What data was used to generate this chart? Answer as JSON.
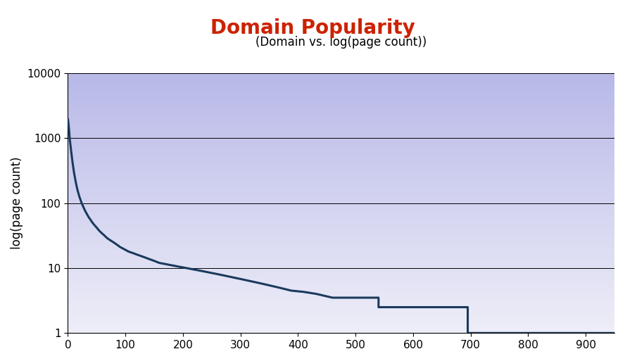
{
  "title": "Domain Popularity",
  "subtitle": "(Domain vs. log(page count))",
  "ylabel": "log(page count)",
  "xlim": [
    0,
    950
  ],
  "ylim_log": [
    1,
    10000
  ],
  "xticks": [
    0,
    100,
    200,
    300,
    400,
    500,
    600,
    700,
    800,
    900
  ],
  "yticks": [
    1,
    10,
    100,
    1000,
    10000
  ],
  "line_color": "#1a3a5c",
  "line_width": 2.2,
  "bg_color_top": "#b8b8e8",
  "bg_color_bottom": "#eeeef8",
  "title_color": "#cc2200",
  "title_fontsize": 20,
  "subtitle_fontsize": 12,
  "ylabel_fontsize": 12,
  "tick_fontsize": 11,
  "step_data": [
    [
      0,
      2000
    ],
    [
      1,
      1700
    ],
    [
      2,
      1350
    ],
    [
      3,
      1050
    ],
    [
      4,
      850
    ],
    [
      5,
      720
    ],
    [
      6,
      600
    ],
    [
      7,
      510
    ],
    [
      8,
      435
    ],
    [
      9,
      375
    ],
    [
      10,
      325
    ],
    [
      11,
      285
    ],
    [
      12,
      255
    ],
    [
      13,
      228
    ],
    [
      14,
      205
    ],
    [
      15,
      186
    ],
    [
      16,
      170
    ],
    [
      17,
      156
    ],
    [
      18,
      145
    ],
    [
      19,
      135
    ],
    [
      20,
      126
    ],
    [
      22,
      112
    ],
    [
      24,
      100
    ],
    [
      26,
      91
    ],
    [
      28,
      83
    ],
    [
      30,
      76
    ],
    [
      33,
      68
    ],
    [
      36,
      61
    ],
    [
      39,
      56
    ],
    [
      42,
      51
    ],
    [
      46,
      46
    ],
    [
      50,
      42
    ],
    [
      54,
      38
    ],
    [
      58,
      35
    ],
    [
      63,
      32
    ],
    [
      68,
      29
    ],
    [
      73,
      27
    ],
    [
      79,
      25
    ],
    [
      85,
      23
    ],
    [
      91,
      21
    ],
    [
      98,
      19.5
    ],
    [
      105,
      18
    ],
    [
      113,
      17
    ],
    [
      121,
      16
    ],
    [
      130,
      15
    ],
    [
      139,
      14
    ],
    [
      149,
      13
    ],
    [
      159,
      12
    ],
    [
      170,
      11.5
    ],
    [
      181,
      11
    ],
    [
      193,
      10.5
    ],
    [
      206,
      10
    ],
    [
      219,
      9.5
    ],
    [
      233,
      9
    ],
    [
      247,
      8.5
    ],
    [
      262,
      8
    ],
    [
      277,
      7.5
    ],
    [
      293,
      7
    ],
    [
      310,
      6.5
    ],
    [
      328,
      6
    ],
    [
      347,
      5.5
    ],
    [
      367,
      5
    ],
    [
      388,
      4.5
    ],
    [
      410,
      4.3
    ],
    [
      432,
      4.0
    ],
    [
      432,
      4.0
    ],
    [
      460,
      3.5
    ],
    [
      460,
      3.5
    ],
    [
      540,
      3.5
    ],
    [
      540,
      2.5
    ],
    [
      540,
      2.5
    ],
    [
      695,
      2.5
    ],
    [
      695,
      1.0
    ],
    [
      950,
      1.0
    ]
  ],
  "grid_color": "#000000",
  "grid_linewidth": 0.7
}
